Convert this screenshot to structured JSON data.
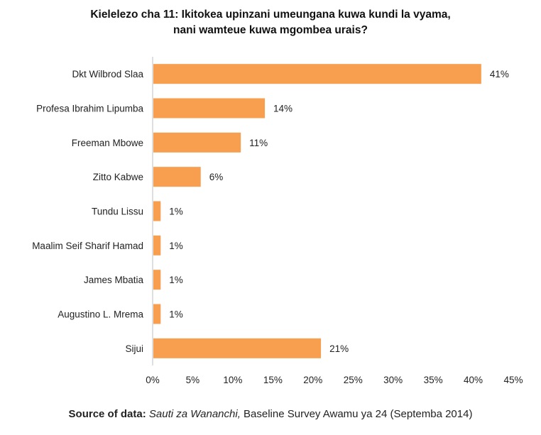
{
  "title_line1": "Kielelezo cha 11: Ikitokea upinzani umeungana kuwa kundi la vyama,",
  "title_line2": "nani wamteue kuwa mgombea urais?",
  "footer": {
    "label": "Source of data:",
    "source": "Sauti za Wananchi,",
    "rest": "Baseline Survey Awamu ya 24 (Septemba 2014)"
  },
  "colors": {
    "bar": "#f79e4f",
    "axis": "#bfbfbf",
    "text": "#222222"
  },
  "chart_data": {
    "type": "bar",
    "orientation": "horizontal",
    "categories": [
      "Dkt Wilbrod Slaa",
      "Profesa Ibrahim Lipumba",
      "Freeman Mbowe",
      "Zitto Kabwe",
      "Tundu Lissu",
      "Maalim Seif Sharif Hamad",
      "James Mbatia",
      "Augustino L. Mrema",
      "Sijui"
    ],
    "values": [
      41,
      14,
      11,
      6,
      1,
      1,
      1,
      1,
      21
    ],
    "data_labels": [
      "41%",
      "14%",
      "11%",
      "6%",
      "1%",
      "1%",
      "1%",
      "1%",
      "21%"
    ],
    "xlim": [
      0,
      45
    ],
    "xticks": [
      "0%",
      "5%",
      "10%",
      "15%",
      "20%",
      "25%",
      "30%",
      "35%",
      "40%",
      "45%"
    ],
    "grid": false,
    "legend": "none"
  }
}
